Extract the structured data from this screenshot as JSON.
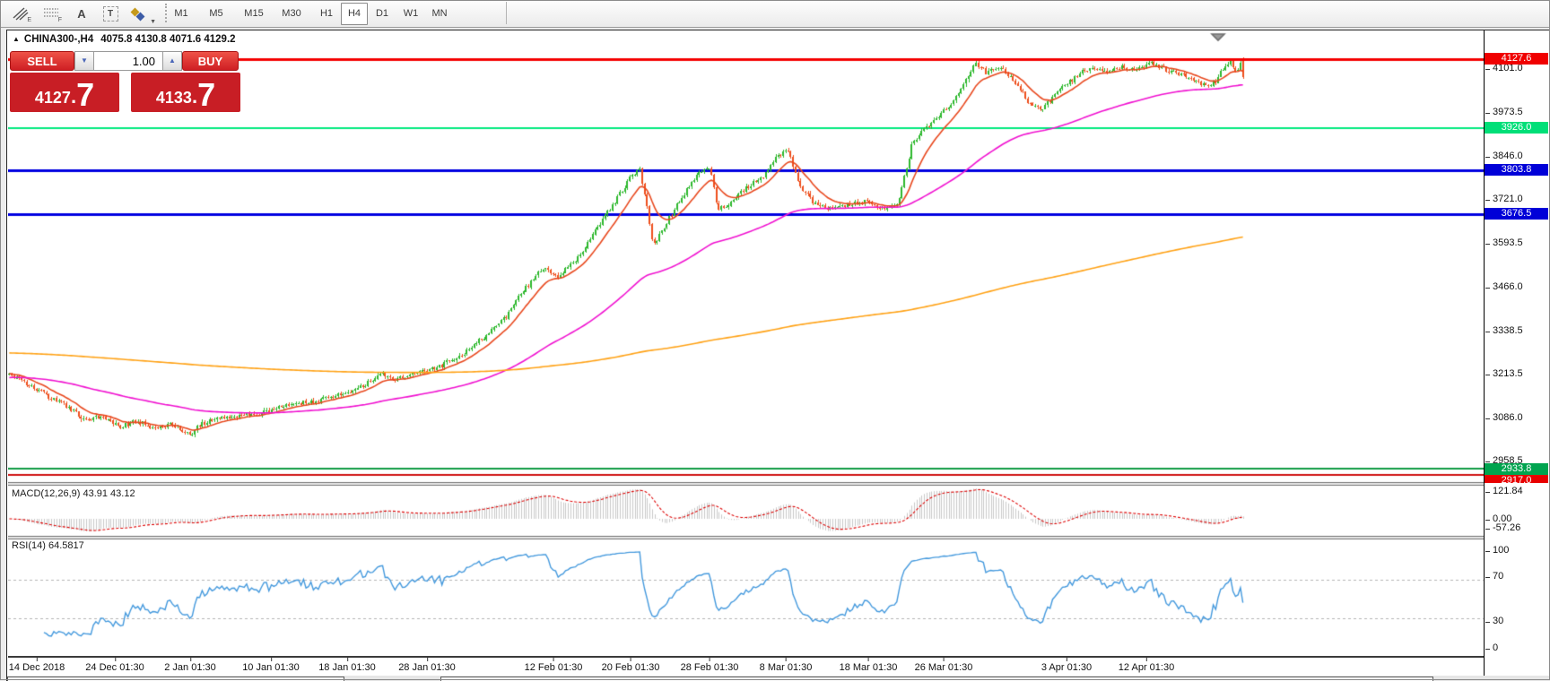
{
  "toolbar": {
    "tools": {
      "lines_sub": "E",
      "fibo_sub": "F",
      "text_glyph": "A",
      "label_glyph": "T"
    },
    "timeframes": {
      "items": [
        "M1",
        "M5",
        "M15",
        "M30",
        "H1",
        "H4",
        "D1",
        "W1",
        "MN"
      ],
      "active": "H4"
    }
  },
  "icons": {
    "collapse": "▲",
    "down_arrow": "▼",
    "up_arrow": "▲",
    "caret_down": "▼"
  },
  "chart_header": {
    "symbol_period": "CHINA300-,H4",
    "ohlc_text": "4075.8 4130.8 4071.6 4129.2"
  },
  "trade_panel": {
    "sell_label": "SELL",
    "buy_label": "BUY",
    "volume": "1.00",
    "sell_price": {
      "int": "4127",
      "dot": ".",
      "frac": "7"
    },
    "buy_price": {
      "int": "4133",
      "dot": ".",
      "frac": "7"
    }
  },
  "price_axis": {
    "ticks": [
      "4101.0",
      "3973.5",
      "3846.0",
      "3721.0",
      "3593.5",
      "3466.0",
      "3338.5",
      "3213.5",
      "3086.0",
      "2958.5"
    ]
  },
  "badges": [
    {
      "label": "4127.6",
      "color": "#f00000"
    },
    {
      "label": "3926.0",
      "color": "#00df78"
    },
    {
      "label": "3803.8",
      "color": "#0000d8"
    },
    {
      "label": "3676.5",
      "color": "#0000d8"
    },
    {
      "label": "2933.8",
      "color": "#00a44f"
    },
    {
      "label": "2917.0",
      "color": "#e80000"
    }
  ],
  "macd_panel": {
    "label": "MACD(12,26,9) 43.91 43.12",
    "ticks": [
      "121.84",
      "0.00",
      "-57.26"
    ]
  },
  "rsi_panel": {
    "label": "RSI(14) 64.5817",
    "ticks": [
      "100",
      "70",
      "30",
      "0"
    ]
  },
  "date_axis": {
    "labels": [
      "14 Dec 2018",
      "24 Dec 01:30",
      "2 Jan 01:30",
      "10 Jan 01:30",
      "18 Jan 01:30",
      "28 Jan 01:30",
      "12 Feb 01:30",
      "20 Feb 01:30",
      "28 Feb 01:30",
      "8 Mar 01:30",
      "18 Mar 01:30",
      "26 Mar 01:30",
      "3 Apr 01:30",
      "12 Apr 01:30"
    ]
  },
  "chart_data": {
    "type": "candlestick",
    "symbol": "CHINA300-",
    "timeframe": "H4",
    "title_ohlc": {
      "open": 4075.8,
      "high": 4130.8,
      "low": 4071.6,
      "close": 4129.2
    },
    "bid": 4127.6,
    "ask_display": 4133.7,
    "bid_display": 4127.7,
    "price_axis_ticks": [
      4101.0,
      3973.5,
      3846.0,
      3721.0,
      3593.5,
      3466.0,
      3338.5,
      3213.5,
      3086.0,
      2958.5
    ],
    "x_axis_dates": [
      "14 Dec 2018",
      "24 Dec 01:30",
      "2 Jan 01:30",
      "10 Jan 01:30",
      "18 Jan 01:30",
      "28 Jan 01:30",
      "12 Feb 01:30",
      "20 Feb 01:30",
      "28 Feb 01:30",
      "8 Mar 01:30",
      "18 Mar 01:30",
      "26 Mar 01:30",
      "3 Apr 01:30",
      "12 Apr 01:30"
    ],
    "bar_count": 500,
    "candle_up_color": "#2eb82e",
    "candle_down_color": "#ee4f1d",
    "price_anchors": [
      [
        8,
        3212
      ],
      [
        25,
        3190
      ],
      [
        50,
        3150
      ],
      [
        75,
        3112
      ],
      [
        95,
        3072
      ],
      [
        112,
        3088
      ],
      [
        132,
        3058
      ],
      [
        152,
        3072
      ],
      [
        172,
        3052
      ],
      [
        192,
        3062
      ],
      [
        205,
        3040
      ],
      [
        212,
        3028
      ],
      [
        222,
        3065
      ],
      [
        250,
        3086
      ],
      [
        285,
        3094
      ],
      [
        320,
        3118
      ],
      [
        355,
        3136
      ],
      [
        390,
        3160
      ],
      [
        412,
        3188
      ],
      [
        425,
        3208
      ],
      [
        438,
        3192
      ],
      [
        465,
        3212
      ],
      [
        492,
        3235
      ],
      [
        515,
        3268
      ],
      [
        540,
        3322
      ],
      [
        562,
        3372
      ],
      [
        585,
        3462
      ],
      [
        605,
        3520
      ],
      [
        622,
        3492
      ],
      [
        642,
        3545
      ],
      [
        662,
        3625
      ],
      [
        682,
        3700
      ],
      [
        702,
        3782
      ],
      [
        712,
        3806
      ],
      [
        720,
        3705
      ],
      [
        727,
        3582
      ],
      [
        742,
        3650
      ],
      [
        760,
        3728
      ],
      [
        776,
        3792
      ],
      [
        790,
        3812
      ],
      [
        799,
        3690
      ],
      [
        812,
        3702
      ],
      [
        830,
        3752
      ],
      [
        850,
        3782
      ],
      [
        864,
        3846
      ],
      [
        877,
        3862
      ],
      [
        890,
        3762
      ],
      [
        905,
        3712
      ],
      [
        922,
        3688
      ],
      [
        942,
        3702
      ],
      [
        962,
        3716
      ],
      [
        982,
        3692
      ],
      [
        1000,
        3706
      ],
      [
        1008,
        3792
      ],
      [
        1016,
        3882
      ],
      [
        1030,
        3922
      ],
      [
        1046,
        3962
      ],
      [
        1062,
        4002
      ],
      [
        1076,
        4062
      ],
      [
        1086,
        4116
      ],
      [
        1100,
        4086
      ],
      [
        1114,
        4106
      ],
      [
        1130,
        4062
      ],
      [
        1146,
        4002
      ],
      [
        1160,
        3976
      ],
      [
        1176,
        4026
      ],
      [
        1192,
        4062
      ],
      [
        1206,
        4092
      ],
      [
        1220,
        4102
      ],
      [
        1236,
        4086
      ],
      [
        1250,
        4106
      ],
      [
        1266,
        4096
      ],
      [
        1282,
        4112
      ],
      [
        1302,
        4092
      ],
      [
        1322,
        4076
      ],
      [
        1342,
        4050
      ],
      [
        1354,
        4062
      ],
      [
        1362,
        4096
      ],
      [
        1370,
        4122
      ],
      [
        1377,
        4088
      ],
      [
        1384,
        4128
      ]
    ],
    "overlays": [
      {
        "name": "fast-ma",
        "period": 13,
        "seed": null,
        "color": "#e8481e"
      },
      {
        "name": "medium-ma",
        "period": 100,
        "seed": 3200,
        "color": "#f012d0"
      },
      {
        "name": "slow-ma",
        "period": 700,
        "seed": 3272,
        "color": "#ffa216"
      }
    ],
    "horizontal_lines": [
      {
        "value": 4127.6,
        "color": "#f40000",
        "width": 3,
        "role": "bid-price"
      },
      {
        "value": 3926.0,
        "color": "#00e97e",
        "width": 2,
        "role": "resistance"
      },
      {
        "value": 3803.8,
        "color": "#0000e1",
        "width": 3,
        "role": "level"
      },
      {
        "value": 3676.5,
        "color": "#0000e1",
        "width": 3,
        "role": "level"
      },
      {
        "value": 2933.8,
        "color": "#119c44",
        "width": 2,
        "role": "support"
      },
      {
        "value": 2917.0,
        "color": "#cf0f0f",
        "width": 2,
        "role": "support"
      }
    ],
    "indicators": [
      {
        "name": "MACD",
        "params": [
          12,
          26,
          9
        ],
        "current": [
          43.91,
          43.12
        ],
        "axis_ticks": [
          121.84,
          0.0,
          -57.26
        ],
        "histogram_color": "#c9c9c9",
        "signal_color": "#dd0000"
      },
      {
        "name": "RSI",
        "params": [
          14
        ],
        "current": 64.5817,
        "axis_ticks": [
          100,
          70,
          30,
          0
        ],
        "levels": [
          70,
          30
        ],
        "line_color": "#4499dd",
        "level_color": "#b4b4b4"
      }
    ]
  }
}
